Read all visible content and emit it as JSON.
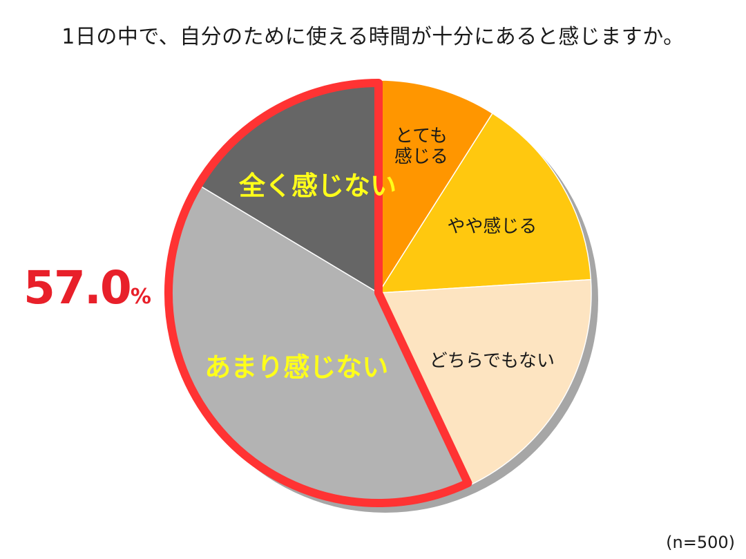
{
  "title": "1日の中で、自分のために使える時間が十分にあると感じますか。",
  "sample_note": "(n=500)",
  "highlight": {
    "value": "57.0",
    "unit": "%",
    "color": "#e8202a"
  },
  "chart_data": {
    "type": "pie",
    "title": "1日の中で、自分のために使える時間が十分にあると感じますか。",
    "start_angle_deg": 0,
    "direction": "clockwise",
    "slices": [
      {
        "label": "とても\n感じる",
        "value": 9.0,
        "color": "#ff9600",
        "text_color": "#1a1a1a"
      },
      {
        "label": "やや感じる",
        "value": 15.0,
        "color": "#ffc80f",
        "text_color": "#1a1a1a"
      },
      {
        "label": "どちらでもない",
        "value": 19.0,
        "color": "#fde4c1",
        "text_color": "#1a1a1a"
      },
      {
        "label": "あまり感じない",
        "value": 40.6,
        "color": "#b3b3b3",
        "text_color": "#ffff1a"
      },
      {
        "label": "全く感じない",
        "value": 16.4,
        "color": "#666666",
        "text_color": "#ffff1a"
      }
    ],
    "highlight_group": {
      "labels": [
        "あまり感じない",
        "全く感じない"
      ],
      "total_percent": 57.0,
      "outline_color": "#ff3333"
    },
    "sample_size": "n=500"
  }
}
